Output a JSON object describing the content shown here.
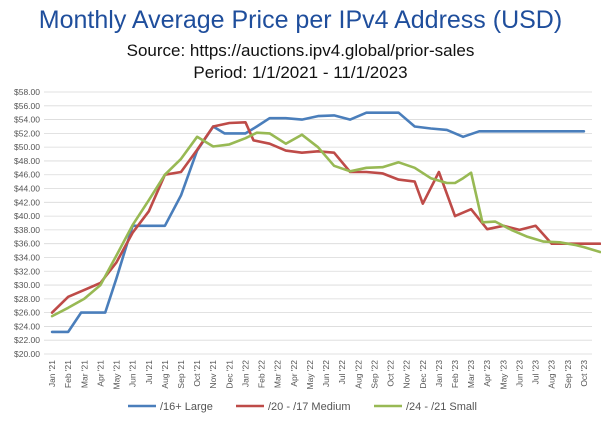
{
  "chart_data": {
    "type": "line",
    "title": "Monthly Average Price per IPv4 Address (USD)",
    "subtitle_lines": [
      "Source: https://auctions.ipv4.global/prior-sales",
      "Period: 1/1/2021 - 11/1/2023"
    ],
    "categories": [
      "Jan '21",
      "Feb '21",
      "Mar '21",
      "Apr '21",
      "May '21",
      "Jun '21",
      "Jul '21",
      "Aug '21",
      "Sep '21",
      "Oct '21",
      "Nov '21",
      "Dec '21",
      "Jan '22",
      "Feb '22",
      "Mar '22",
      "Apr '22",
      "May '22",
      "Jun '22",
      "Jul '22",
      "Aug '22",
      "Sep '22",
      "Oct '22",
      "Nov '22",
      "Dec '22",
      "Jan '23",
      "Feb '23",
      "Mar '23",
      "Apr '23",
      "May '23",
      "Jun '23",
      "Jul '23",
      "Aug '23",
      "Sep '23",
      "Oct '23"
    ],
    "y_ticks": [
      "$20.00",
      "$22.00",
      "$24.00",
      "$26.00",
      "$28.00",
      "$30.00",
      "$32.00",
      "$34.00",
      "$36.00",
      "$38.00",
      "$40.00",
      "$42.00",
      "$44.00",
      "$46.00",
      "$48.00",
      "$50.00",
      "$52.00",
      "$54.00",
      "$56.00",
      "$58.00"
    ],
    "ylim": [
      20,
      58
    ],
    "legend_position": "bottom",
    "series": [
      {
        "name": "/16+ Large",
        "color": "#4a7ebb",
        "x": [
          0,
          1,
          1.8,
          2.5,
          3.3,
          4,
          5,
          6,
          7,
          8,
          9,
          10,
          10.7,
          11.3,
          12,
          12.7,
          13.5,
          14.5,
          15.5,
          16.5,
          17.5,
          18.5,
          19.5,
          20.5,
          21.5,
          22.5,
          23.5,
          24.5,
          25.5,
          26.5,
          27.5,
          28.5,
          29.5,
          30.5,
          31.5,
          32.5,
          33
        ],
        "values": [
          23.2,
          23.2,
          26,
          26,
          26,
          31,
          38.6,
          38.6,
          38.6,
          43,
          49.5,
          53,
          52,
          52,
          52,
          53,
          54.2,
          54.2,
          54,
          54.5,
          54.6,
          54,
          55,
          55,
          55,
          53,
          52.7,
          52.5,
          51.5,
          52.3,
          52.3,
          52.3,
          52.3,
          52.3,
          52.3,
          52.3,
          52.3
        ]
      },
      {
        "name": "/20 - /17 Medium",
        "color": "#be4b48",
        "x": [
          0,
          1,
          2,
          3,
          4,
          5,
          6,
          7,
          8,
          9,
          10,
          11,
          12,
          12.5,
          13.5,
          14.5,
          15.5,
          16.5,
          17.5,
          18.5,
          19.5,
          20.5,
          21.5,
          22.5,
          23,
          24,
          25,
          26,
          27,
          28,
          29,
          30,
          31,
          32,
          33,
          34
        ],
        "values": [
          26,
          28.3,
          29.3,
          30.3,
          33.3,
          37.6,
          40.7,
          46,
          46.4,
          49.6,
          53,
          53.5,
          53.6,
          51,
          50.5,
          49.5,
          49.2,
          49.4,
          49.2,
          46.4,
          46.4,
          46.2,
          45.3,
          45,
          41.8,
          46.4,
          40,
          41,
          38.1,
          38.6,
          38,
          38.6,
          36,
          36,
          36,
          36
        ]
      },
      {
        "name": "/24 - /21 Small",
        "color": "#98b954",
        "x": [
          0,
          1,
          2,
          3,
          4,
          5,
          6,
          7,
          8,
          9,
          10,
          11,
          12,
          12.7,
          13.5,
          14.5,
          15.5,
          16.5,
          17.5,
          18.5,
          19.5,
          20.5,
          21.5,
          22.5,
          23.5,
          24.5,
          25,
          25.5,
          26,
          26.7,
          27.5,
          28.5,
          29.5,
          30.5,
          31.5,
          32.5,
          33,
          34
        ],
        "values": [
          25.5,
          26.7,
          28,
          30,
          34.3,
          38.7,
          42.3,
          46,
          48.3,
          51.5,
          50.1,
          50.4,
          51.3,
          52.1,
          52,
          50.5,
          51.8,
          50,
          47.3,
          46.5,
          47,
          47.1,
          47.8,
          47,
          45.5,
          44.8,
          44.8,
          45.5,
          46.3,
          39.1,
          39.2,
          38,
          37,
          36.3,
          36.2,
          35.8,
          35.5,
          34.8
        ]
      }
    ]
  }
}
